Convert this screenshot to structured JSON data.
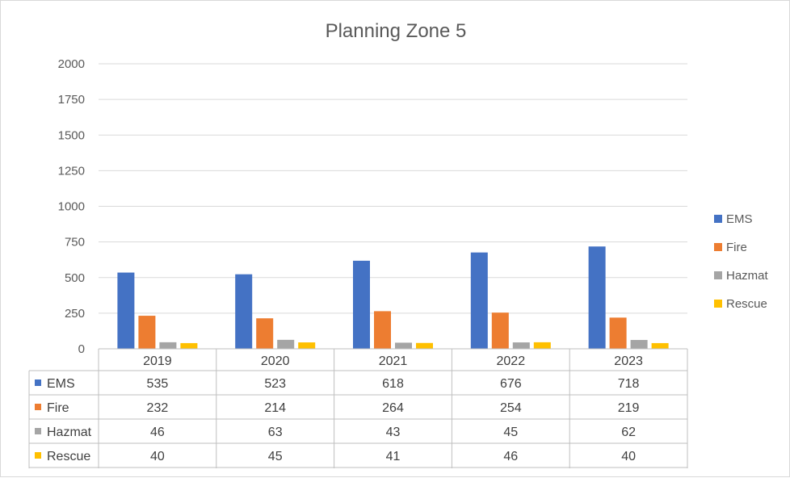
{
  "chart_data": {
    "type": "bar",
    "title": "Planning Zone 5",
    "categories": [
      "2019",
      "2020",
      "2021",
      "2022",
      "2023"
    ],
    "series": [
      {
        "name": "EMS",
        "color": "#4472c4",
        "values": [
          535,
          523,
          618,
          676,
          718
        ]
      },
      {
        "name": "Fire",
        "color": "#ed7d31",
        "values": [
          232,
          214,
          264,
          254,
          219
        ]
      },
      {
        "name": "Hazmat",
        "color": "#a5a5a5",
        "values": [
          46,
          63,
          43,
          45,
          62
        ]
      },
      {
        "name": "Rescue",
        "color": "#ffc000",
        "values": [
          40,
          45,
          41,
          46,
          40
        ]
      }
    ],
    "ylim": [
      0,
      2000
    ],
    "yticks": [
      "0",
      "250",
      "500",
      "750",
      "1000",
      "1250",
      "1500",
      "1750",
      "2000"
    ],
    "xlabel": "",
    "ylabel": "",
    "grid": true,
    "legend": "right",
    "data_table": true
  }
}
